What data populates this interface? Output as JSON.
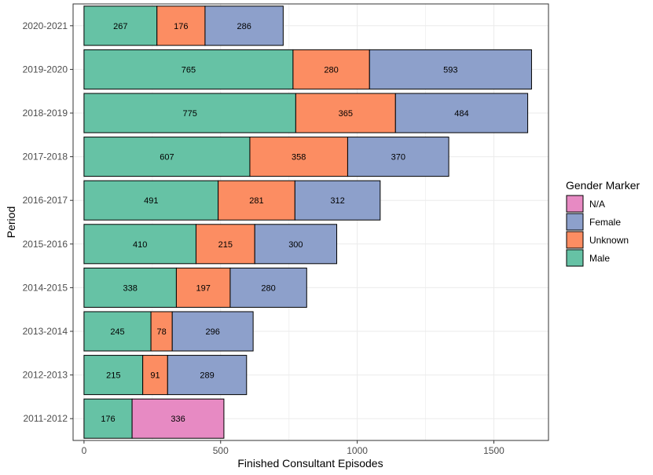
{
  "chart_data": {
    "type": "bar",
    "orientation": "horizontal",
    "stacked": true,
    "xlabel": "Finished Consultant Episodes",
    "ylabel": "Period",
    "xlim": [
      -40,
      1700
    ],
    "xticks": [
      0,
      500,
      1000,
      1500
    ],
    "grid": true,
    "legend_title": "Gender Marker",
    "legend_position": "right",
    "categories": [
      "2011-2012",
      "2012-2013",
      "2013-2014",
      "2014-2015",
      "2015-2016",
      "2016-2017",
      "2017-2018",
      "2018-2019",
      "2019-2020",
      "2020-2021"
    ],
    "series": [
      {
        "name": "Male",
        "color": "#66C2A5",
        "values": [
          176,
          215,
          245,
          338,
          410,
          491,
          607,
          775,
          765,
          267
        ]
      },
      {
        "name": "Unknown",
        "color": "#FC8D62",
        "values": [
          0,
          91,
          78,
          197,
          215,
          281,
          358,
          365,
          280,
          176
        ]
      },
      {
        "name": "Female",
        "color": "#8DA0CB",
        "values": [
          0,
          289,
          296,
          280,
          300,
          312,
          370,
          484,
          593,
          286
        ]
      },
      {
        "name": "N/A",
        "color": "#E78AC3",
        "values": [
          336,
          0,
          0,
          0,
          0,
          0,
          0,
          0,
          0,
          0
        ]
      }
    ],
    "legend_order": [
      "N/A",
      "Female",
      "Unknown",
      "Male"
    ]
  }
}
